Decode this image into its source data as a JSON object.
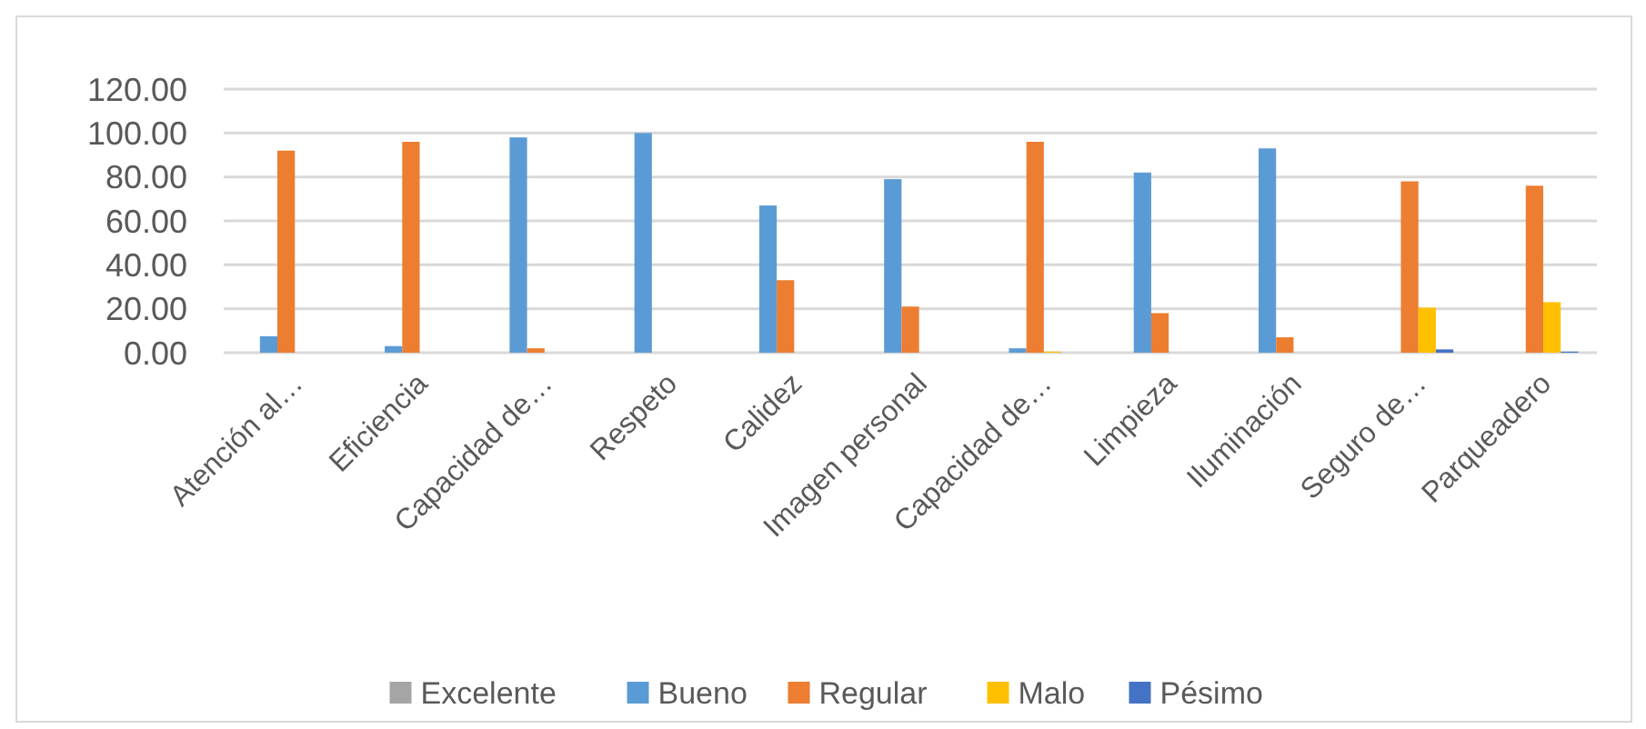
{
  "chart_data": {
    "type": "bar",
    "categories": [
      "Atención al…",
      "Eficiencia",
      "Capacidad de…",
      "Respeto",
      "Calidez",
      "Imagen personal",
      "Capacidad de…",
      "Limpieza",
      "Iluminación",
      "Seguro de…",
      "Parqueadero"
    ],
    "series": [
      {
        "name": "Excelente",
        "color": "#a5a5a5",
        "values": [
          0,
          0,
          0,
          0,
          0,
          0,
          0,
          0,
          0,
          0,
          0
        ]
      },
      {
        "name": "Bueno",
        "color": "#5b9bd5",
        "values": [
          7.5,
          3,
          98,
          100,
          67,
          79,
          2,
          82,
          93,
          0,
          0
        ]
      },
      {
        "name": "Regular",
        "color": "#ed7d31",
        "values": [
          92,
          96,
          2,
          0,
          33,
          21,
          96,
          18,
          7,
          78,
          76
        ]
      },
      {
        "name": "Malo",
        "color": "#ffc000",
        "values": [
          0,
          0,
          0,
          0,
          0,
          0,
          0.5,
          0,
          0,
          20.5,
          23
        ]
      },
      {
        "name": "Pésimo",
        "color": "#4472c4",
        "values": [
          0,
          0,
          0,
          0,
          0,
          0,
          0,
          0,
          0,
          1.5,
          0.5
        ]
      }
    ],
    "ylim": [
      0,
      120
    ],
    "yticks": [
      {
        "value": 0,
        "label": "0.00"
      },
      {
        "value": 20,
        "label": "20.00"
      },
      {
        "value": 40,
        "label": "40.00"
      },
      {
        "value": 60,
        "label": "60.00"
      },
      {
        "value": 80,
        "label": "80.00"
      },
      {
        "value": 100,
        "label": "100.00"
      },
      {
        "value": 120,
        "label": "120.00"
      }
    ],
    "grid": "y",
    "legend": "bottom"
  }
}
